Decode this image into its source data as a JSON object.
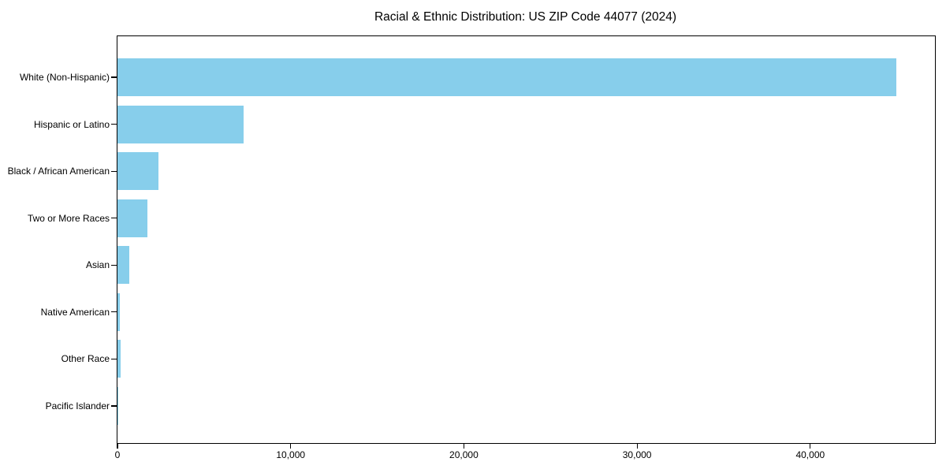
{
  "chart_data": {
    "type": "bar",
    "orientation": "horizontal",
    "title": "Racial & Ethnic Distribution: US ZIP Code 44077 (2024)",
    "categories": [
      "White (Non-Hispanic)",
      "Hispanic or Latino",
      "Black / African American",
      "Two or More Races",
      "Asian",
      "Native American",
      "Other Race",
      "Pacific Islander"
    ],
    "values": [
      44950,
      7300,
      2350,
      1750,
      670,
      130,
      160,
      30
    ],
    "xlabel": "",
    "ylabel": "",
    "xlim": [
      0,
      47200
    ],
    "xticks": [
      0,
      10000,
      20000,
      30000,
      40000
    ],
    "xtick_labels": [
      "0",
      "10,000",
      "20,000",
      "30,000",
      "40,000"
    ],
    "grid": false,
    "legend": null,
    "bar_color": "#87CEEB",
    "text_color": "#000000",
    "spine_color": "#000000",
    "background_color": "#FFFFFF"
  }
}
